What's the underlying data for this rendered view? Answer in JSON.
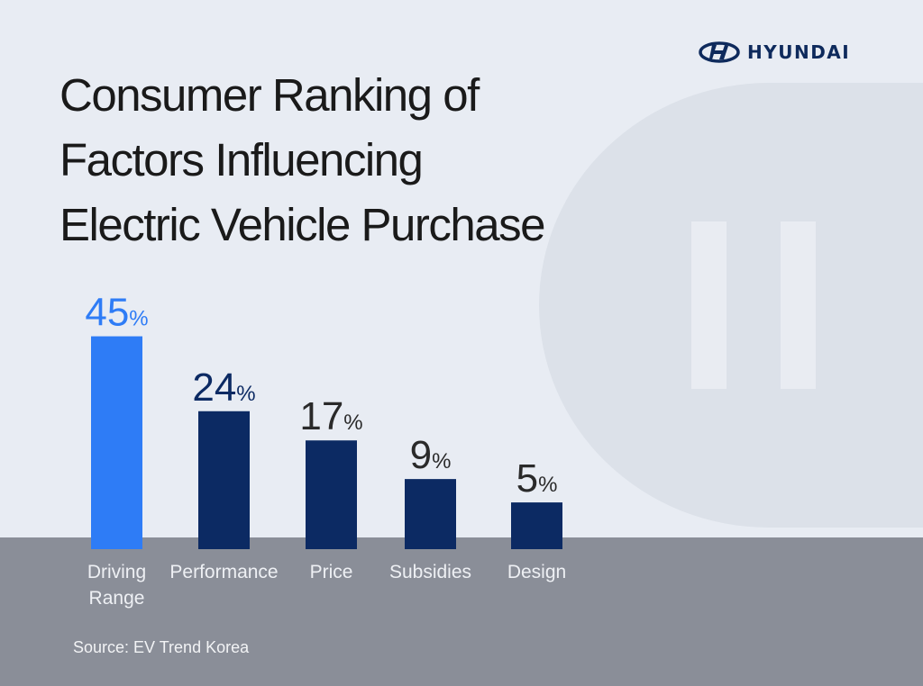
{
  "brand": {
    "name": "HYUNDAI",
    "color": "#0e2a5c"
  },
  "title_lines": [
    "Consumer Ranking of",
    "Factors Influencing",
    "Electric Vehicle Purchase"
  ],
  "source": "Source: EV Trend Korea",
  "chart_data": {
    "type": "bar",
    "title": "Consumer Ranking of Factors Influencing Electric Vehicle Purchase",
    "categories": [
      [
        "Driving",
        "Range"
      ],
      [
        "Performance"
      ],
      [
        "Price"
      ],
      [
        "Subsidies"
      ],
      [
        "Design"
      ]
    ],
    "values": [
      45,
      24,
      17,
      9,
      5
    ],
    "unit": "%",
    "colors": [
      "#2e7cf6",
      "#0c2a63",
      "#0c2a63",
      "#0c2a63",
      "#0c2a63"
    ],
    "label_colors": [
      "#2e7cf6",
      "#0c2a63",
      "#2a2a2a",
      "#2a2a2a",
      "#2a2a2a"
    ],
    "grid": false,
    "xlabel": "",
    "ylabel": ""
  }
}
